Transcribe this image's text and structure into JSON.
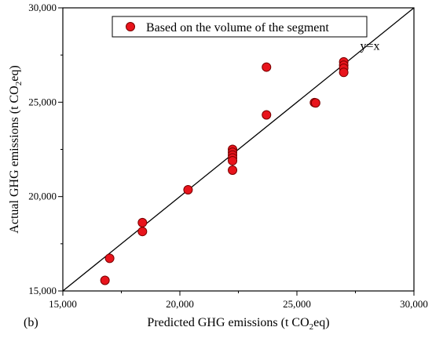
{
  "chart_data": {
    "type": "scatter",
    "panel_label": "(b)",
    "xlabel": {
      "main": "Predicted GHG emissions (t CO",
      "sub": "2",
      "tail": "eq)"
    },
    "ylabel": {
      "main": "Actual GHG emissions (t CO",
      "sub": "2",
      "tail": "eq)"
    },
    "xlim": [
      15000,
      30000
    ],
    "ylim": [
      15000,
      30000
    ],
    "xticks": [
      15000,
      20000,
      25000,
      30000
    ],
    "yticks": [
      15000,
      20000,
      25000,
      30000
    ],
    "xtick_labels": [
      "15,000",
      "20,000",
      "25,000",
      "30,000"
    ],
    "ytick_labels": [
      "15,000",
      "20,000",
      "25,000",
      "30,000"
    ],
    "grid": false,
    "legend": {
      "position": "top-center",
      "label": "Based on the volume of the segment"
    },
    "reference_line": {
      "label": "y=x",
      "from": [
        15000,
        15000
      ],
      "to": [
        30000,
        30000
      ]
    },
    "marker_color": "#e8141c",
    "marker_edge_color": "#7a0000",
    "series": [
      {
        "name": "Based on the volume of the segment",
        "points": [
          [
            16800,
            15560
          ],
          [
            17000,
            16730
          ],
          [
            18400,
            18620
          ],
          [
            18400,
            18150
          ],
          [
            20350,
            20360
          ],
          [
            22250,
            22500
          ],
          [
            22250,
            22350
          ],
          [
            22250,
            22200
          ],
          [
            22250,
            22050
          ],
          [
            22250,
            21900
          ],
          [
            22250,
            21400
          ],
          [
            23700,
            26860
          ],
          [
            23700,
            24330
          ],
          [
            25750,
            24980
          ],
          [
            25800,
            24960
          ],
          [
            27000,
            27140
          ],
          [
            27000,
            26960
          ],
          [
            27000,
            26800
          ],
          [
            27000,
            26580
          ]
        ]
      }
    ]
  }
}
